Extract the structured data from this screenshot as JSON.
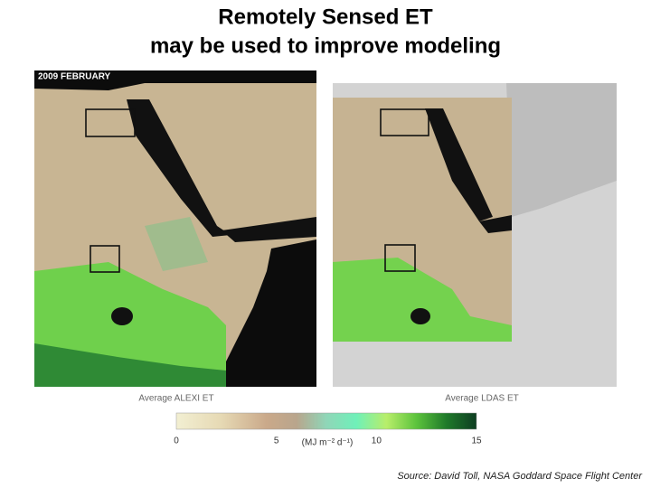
{
  "title": [
    "Remotely Sensed ET",
    "may be used to improve modeling"
  ],
  "date_label": "2009 FEBRUARY",
  "maps": [
    {
      "label": "Average ALEXI ET"
    },
    {
      "label": "Average LDAS ET"
    }
  ],
  "colorbar": {
    "ticks": [
      0,
      5,
      10,
      15
    ],
    "unit": "(MJ m⁻² d⁻¹)"
  },
  "source": "Source: David Toll, NASA Goddard Space Flight Center"
}
